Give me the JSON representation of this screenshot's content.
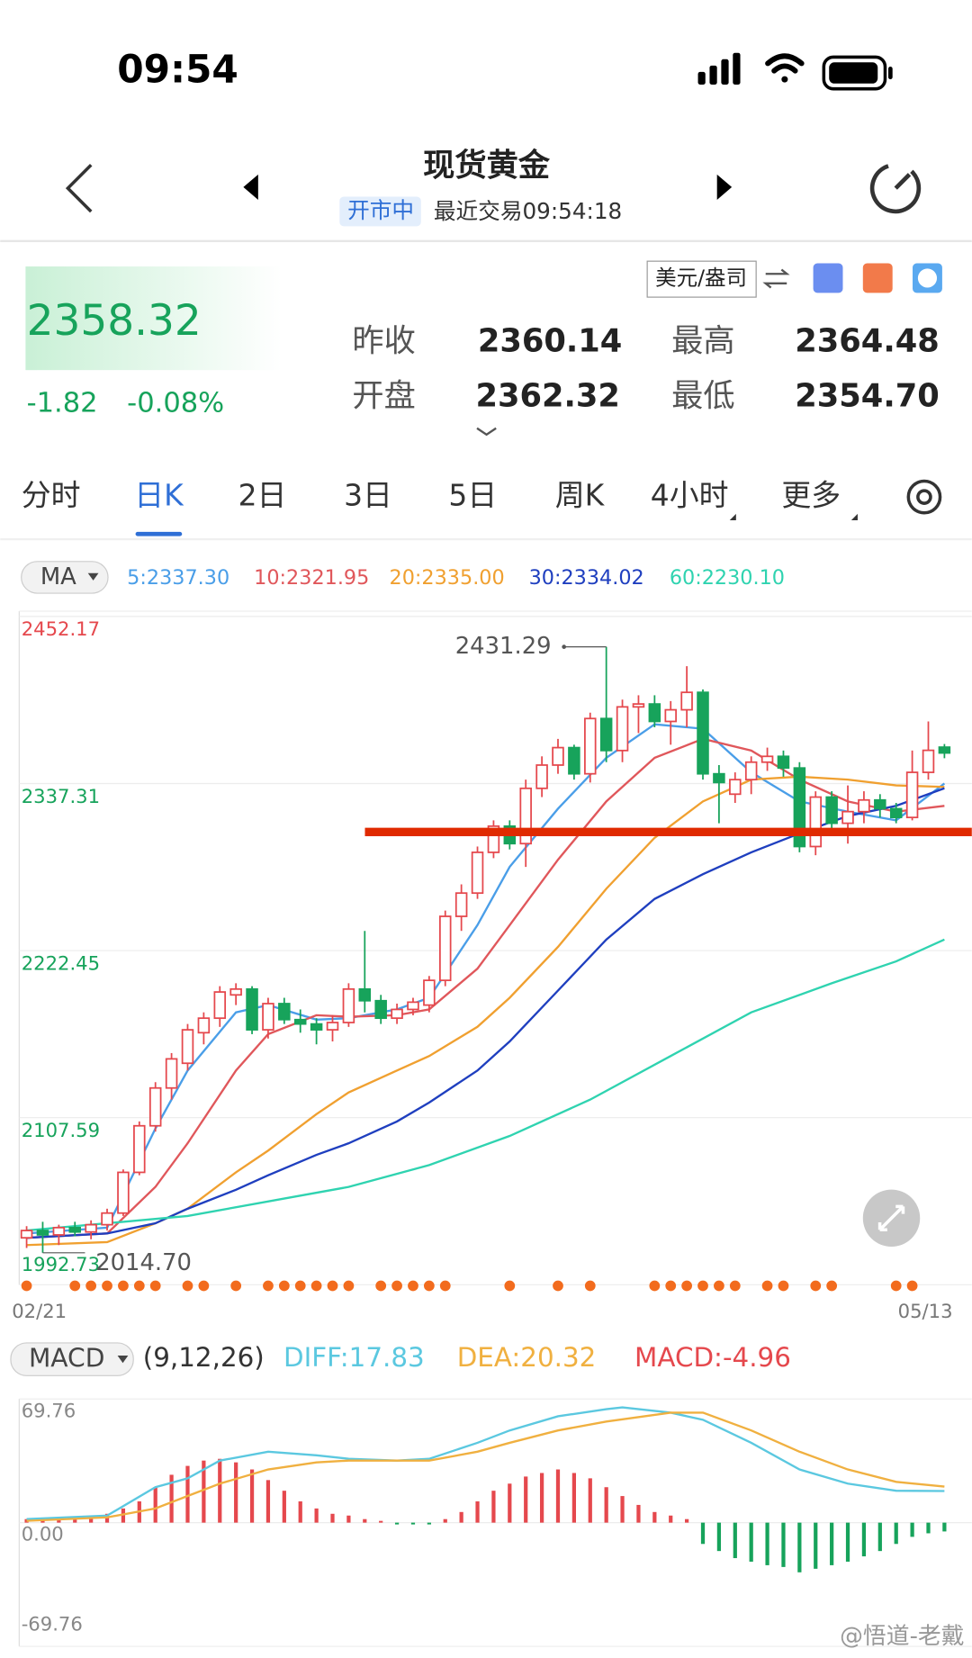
{
  "status_bar": {
    "time": "09:54"
  },
  "header": {
    "title": "现货黄金",
    "status": "开市中",
    "last_trade": "最近交易09:54:18"
  },
  "quote": {
    "price": "2358.32",
    "change": "-1.82",
    "change_pct": "-0.08%",
    "unit": "美元/盎司",
    "fields": [
      {
        "label": "昨收",
        "value": "2360.14"
      },
      {
        "label": "最高",
        "value": "2364.48"
      },
      {
        "label": "开盘",
        "value": "2362.32"
      },
      {
        "label": "最低",
        "value": "2354.70"
      }
    ]
  },
  "tabs": [
    "分时",
    "日K",
    "2日",
    "3日",
    "5日",
    "周K",
    "4小时",
    "更多"
  ],
  "active_tab": 1,
  "watermark": "@悟道-老戴",
  "chart_data": [
    {
      "type": "candlestick",
      "indicator": "MA",
      "ylim": [
        1992.73,
        2452.17
      ],
      "yticks": [
        2452.17,
        2337.31,
        2222.45,
        2107.59,
        1992.73
      ],
      "x_labels": [
        "02/21",
        "05/13"
      ],
      "up_color": "#e5484d",
      "down_color": "#17a35b",
      "high_label": "2431.29",
      "low_label": "2014.70",
      "high_index": 36,
      "low_index": 1,
      "candles": [
        [
          2025,
          2033,
          2018,
          2030
        ],
        [
          2030,
          2036,
          2014.7,
          2027
        ],
        [
          2027,
          2034,
          2020,
          2032
        ],
        [
          2032,
          2036,
          2026,
          2029
        ],
        [
          2029,
          2037,
          2024,
          2034
        ],
        [
          2034,
          2045,
          2030,
          2042
        ],
        [
          2042,
          2072,
          2040,
          2070
        ],
        [
          2070,
          2105,
          2068,
          2102
        ],
        [
          2102,
          2132,
          2098,
          2128
        ],
        [
          2128,
          2152,
          2120,
          2148
        ],
        [
          2145,
          2172,
          2140,
          2168
        ],
        [
          2166,
          2180,
          2158,
          2176
        ],
        [
          2176,
          2198,
          2170,
          2194
        ],
        [
          2192,
          2200,
          2185,
          2196
        ],
        [
          2196,
          2198,
          2165,
          2168
        ],
        [
          2168,
          2190,
          2162,
          2186
        ],
        [
          2186,
          2190,
          2172,
          2175
        ],
        [
          2175,
          2182,
          2166,
          2172
        ],
        [
          2172,
          2176,
          2158,
          2168
        ],
        [
          2168,
          2178,
          2160,
          2173
        ],
        [
          2173,
          2200,
          2170,
          2196
        ],
        [
          2196,
          2236,
          2180,
          2188
        ],
        [
          2188,
          2192,
          2172,
          2176
        ],
        [
          2176,
          2186,
          2172,
          2182
        ],
        [
          2182,
          2190,
          2178,
          2187
        ],
        [
          2185,
          2205,
          2180,
          2202
        ],
        [
          2202,
          2250,
          2198,
          2246
        ],
        [
          2246,
          2268,
          2236,
          2262
        ],
        [
          2262,
          2294,
          2258,
          2290
        ],
        [
          2290,
          2312,
          2286,
          2308
        ],
        [
          2308,
          2312,
          2292,
          2296
        ],
        [
          2296,
          2340,
          2280,
          2334
        ],
        [
          2334,
          2356,
          2328,
          2350
        ],
        [
          2350,
          2368,
          2344,
          2362
        ],
        [
          2362,
          2364,
          2340,
          2344
        ],
        [
          2344,
          2386,
          2338,
          2382
        ],
        [
          2382,
          2431.29,
          2352,
          2360
        ],
        [
          2360,
          2395,
          2352,
          2390
        ],
        [
          2390,
          2398,
          2372,
          2392
        ],
        [
          2392,
          2398,
          2376,
          2380
        ],
        [
          2380,
          2394,
          2364,
          2388
        ],
        [
          2388,
          2418,
          2376,
          2400
        ],
        [
          2400,
          2402,
          2340,
          2344
        ],
        [
          2344,
          2350,
          2310,
          2338
        ],
        [
          2330,
          2345,
          2324,
          2340
        ],
        [
          2340,
          2356,
          2330,
          2352
        ],
        [
          2352,
          2362,
          2346,
          2356
        ],
        [
          2356,
          2360,
          2342,
          2348
        ],
        [
          2348,
          2352,
          2290,
          2294
        ],
        [
          2294,
          2332,
          2288,
          2328
        ],
        [
          2328,
          2332,
          2306,
          2310
        ],
        [
          2310,
          2336,
          2296,
          2318
        ],
        [
          2318,
          2332,
          2310,
          2326
        ],
        [
          2326,
          2330,
          2314,
          2320
        ],
        [
          2320,
          2324,
          2310,
          2314
        ],
        [
          2314,
          2360,
          2312,
          2345
        ],
        [
          2345,
          2380,
          2340,
          2360.14
        ],
        [
          2362.32,
          2364.48,
          2354.7,
          2358.32
        ]
      ],
      "series": [
        {
          "name": "5:2337.30",
          "color": "#4a9ee8",
          "x": [
            0,
            5,
            8,
            10,
            13,
            15,
            18,
            20,
            23,
            25,
            28,
            30,
            33,
            36,
            39,
            42,
            45,
            48,
            51,
            54,
            57
          ],
          "values": [
            2028,
            2032,
            2100,
            2140,
            2180,
            2185,
            2175,
            2176,
            2182,
            2190,
            2240,
            2280,
            2320,
            2355,
            2378,
            2375,
            2345,
            2325,
            2318,
            2312,
            2337.3
          ]
        },
        {
          "name": "10:2321.95",
          "color": "#e0575b",
          "x": [
            0,
            5,
            8,
            10,
            13,
            15,
            18,
            20,
            23,
            25,
            28,
            30,
            33,
            36,
            39,
            42,
            45,
            48,
            51,
            54,
            57
          ],
          "values": [
            2025,
            2028,
            2060,
            2090,
            2140,
            2165,
            2178,
            2177,
            2178,
            2182,
            2210,
            2240,
            2285,
            2325,
            2355,
            2368,
            2360,
            2340,
            2325,
            2318,
            2321.95
          ]
        },
        {
          "name": "20:2335.00",
          "color": "#f0a030",
          "x": [
            0,
            5,
            8,
            10,
            13,
            15,
            18,
            20,
            23,
            25,
            28,
            30,
            33,
            36,
            39,
            42,
            45,
            48,
            51,
            54,
            57
          ],
          "values": [
            2020,
            2022,
            2035,
            2045,
            2070,
            2085,
            2110,
            2125,
            2140,
            2150,
            2170,
            2190,
            2225,
            2265,
            2300,
            2325,
            2340,
            2342,
            2340,
            2336,
            2335.0
          ]
        },
        {
          "name": "30:2334.02",
          "color": "#1f3fbf",
          "x": [
            0,
            5,
            8,
            10,
            13,
            15,
            18,
            20,
            23,
            25,
            28,
            30,
            33,
            36,
            39,
            42,
            45,
            48,
            51,
            54,
            57
          ],
          "values": [
            2025,
            2028,
            2035,
            2045,
            2058,
            2068,
            2082,
            2090,
            2105,
            2118,
            2140,
            2160,
            2195,
            2230,
            2258,
            2275,
            2290,
            2303,
            2315,
            2322,
            2334.02
          ]
        },
        {
          "name": "60:2230.10",
          "color": "#2fd3b0",
          "x": [
            0,
            10,
            20,
            25,
            30,
            35,
            40,
            45,
            50,
            54,
            57
          ],
          "values": [
            2030,
            2040,
            2060,
            2075,
            2095,
            2120,
            2150,
            2180,
            2200,
            2215,
            2230.1
          ]
        }
      ],
      "hline": {
        "value": 2304,
        "color": "#e02a00"
      },
      "signals": [
        0,
        3,
        4,
        5,
        6,
        7,
        8,
        10,
        11,
        13,
        15,
        16,
        17,
        18,
        19,
        20,
        22,
        23,
        24,
        25,
        26,
        30,
        33,
        35,
        39,
        40,
        41,
        42,
        43,
        44,
        46,
        47,
        49,
        50,
        54,
        55
      ],
      "signal_color": "#f26b1d"
    },
    {
      "type": "macd",
      "indicator": "MACD",
      "params": "(9,12,26)",
      "ylim": [
        -69.76,
        69.76
      ],
      "yticks": [
        69.76,
        {
          "value": 0,
          "label": "0.00"
        },
        -69.76
      ],
      "histogram": {
        "name": "MACD:-4.96",
        "color": "#e5484d",
        "negative_color": "#17a35b",
        "values": [
          2,
          2,
          3,
          3,
          4,
          5,
          8,
          12,
          20,
          27,
          32,
          35,
          36,
          34,
          30,
          24,
          18,
          12,
          8,
          5,
          4,
          2,
          1,
          -1,
          -1,
          -1,
          2,
          6,
          12,
          18,
          22,
          26,
          28,
          30,
          28,
          25,
          20,
          15,
          10,
          6,
          4,
          2,
          -12,
          -16,
          -20,
          -22,
          -24,
          -25,
          -28,
          -26,
          -24,
          -22,
          -19,
          -16,
          -12,
          -8,
          -6,
          -4.96
        ]
      },
      "series": [
        {
          "name": "DIFF:17.83",
          "color": "#5bc8e0",
          "x": [
            0,
            5,
            8,
            10,
            12,
            15,
            18,
            20,
            23,
            25,
            28,
            30,
            33,
            36,
            37,
            40,
            42,
            45,
            48,
            51,
            54,
            57
          ],
          "values": [
            2,
            4,
            20,
            25,
            35,
            40,
            38,
            36,
            35,
            36,
            45,
            52,
            60,
            64,
            65,
            62,
            58,
            45,
            30,
            22,
            18,
            17.83
          ]
        },
        {
          "name": "DEA:20.32",
          "color": "#f0b040",
          "x": [
            0,
            5,
            8,
            10,
            12,
            15,
            18,
            20,
            23,
            25,
            28,
            30,
            33,
            36,
            40,
            42,
            45,
            48,
            51,
            54,
            57
          ],
          "values": [
            1,
            3,
            8,
            15,
            22,
            30,
            34,
            35,
            35,
            35,
            40,
            45,
            52,
            57,
            62,
            62,
            52,
            40,
            30,
            23,
            20.32
          ]
        }
      ]
    }
  ]
}
